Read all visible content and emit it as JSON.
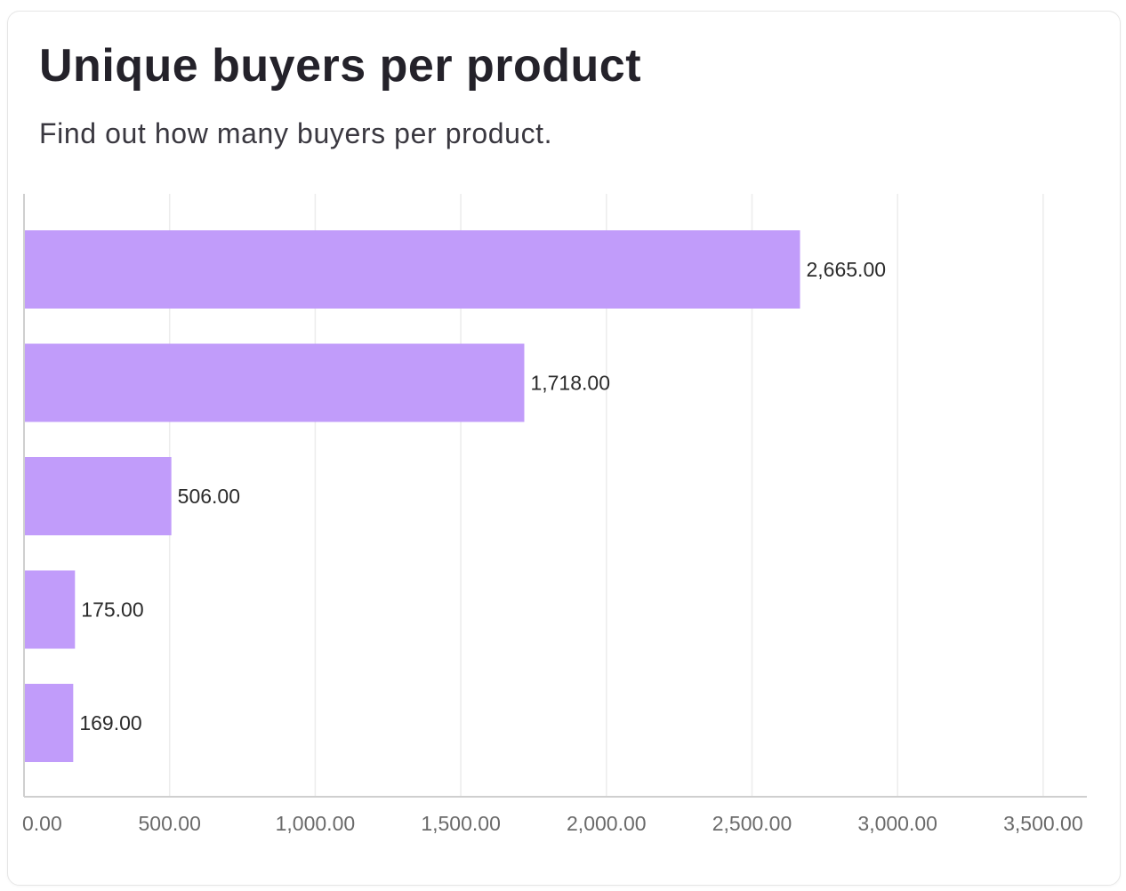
{
  "card": {
    "title": "Unique buyers per product",
    "subtitle": "Find out how many buyers per product."
  },
  "chart_data": {
    "type": "bar",
    "orientation": "horizontal",
    "title": "Unique buyers per product",
    "subtitle": "Find out how many buyers per product.",
    "values": [
      2665,
      1718,
      506,
      175,
      169
    ],
    "value_labels": [
      "2,665.00",
      "1,718.00",
      "506.00",
      "175.00",
      "169.00"
    ],
    "x_ticks": [
      0,
      500,
      1000,
      1500,
      2000,
      2500,
      3000,
      3500
    ],
    "x_tick_labels": [
      "0.00",
      "500.00",
      "1,000.00",
      "1,500.00",
      "2,000.00",
      "2,500.00",
      "3,000.00",
      "3,500.00"
    ],
    "xlim": [
      0,
      3650
    ],
    "grid": "vertical",
    "bar_color": "#c19cfa",
    "grid_color": "#ececec",
    "axis_color": "#cfcfcf",
    "label_color": "#2b2b2b",
    "tick_label_color": "#6a6a6a"
  }
}
